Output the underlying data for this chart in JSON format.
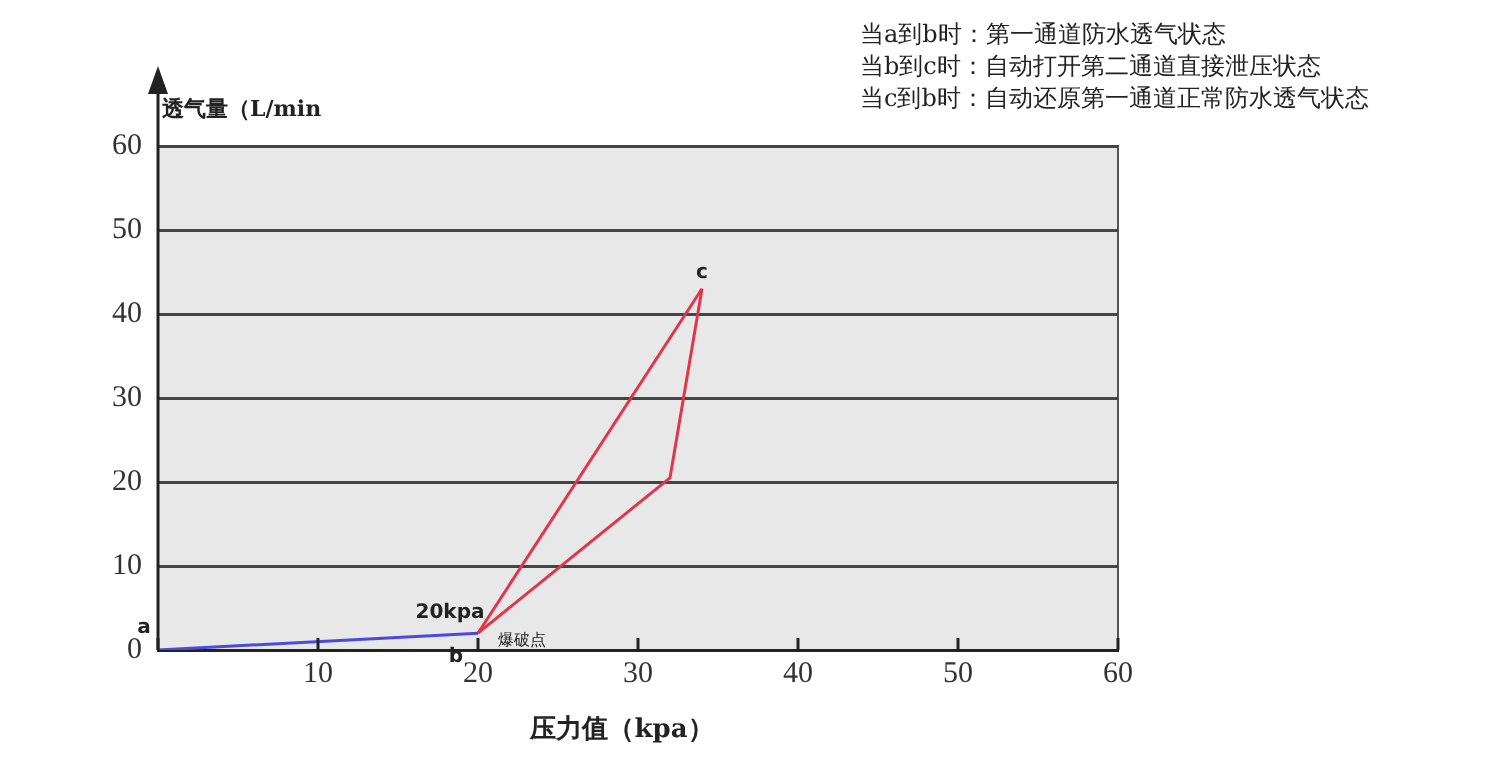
{
  "chart_data": {
    "type": "line",
    "xlabel": "压力值（kpa）",
    "ylabel": "透气量（L/min",
    "series": [
      {
        "color": "#4a4ae0",
        "x": [
          0,
          20
        ],
        "values": [
          0,
          2
        ]
      },
      {
        "color": "#e0364a",
        "x": [
          20,
          34
        ],
        "values": [
          2,
          43
        ]
      },
      {
        "color": "#e0364a",
        "x": [
          34,
          32,
          20
        ],
        "values": [
          43,
          20.5,
          2
        ]
      }
    ],
    "xlim": [
      0,
      60
    ],
    "xticks": [
      {
        "value": 0,
        "label": null
      },
      10,
      20,
      30,
      40,
      50,
      60
    ],
    "ylim": [
      0,
      60
    ],
    "yticks": [
      0,
      10,
      20,
      30,
      40,
      50,
      60
    ],
    "grid": "y",
    "legend": false,
    "marker": "none",
    "line_style": "solid",
    "annotations": [
      {
        "text": "a",
        "x": 0,
        "y": 0
      },
      {
        "text": "b",
        "x": 20,
        "y": 2
      },
      {
        "text": "c",
        "x": 34,
        "y": 43
      },
      {
        "text": "20kpa",
        "x": 20,
        "y": 2
      },
      {
        "text": "爆破点",
        "x": 20,
        "y": 2
      },
      "当a到b时：第一通道防水透气状态",
      "当b到c时：自动打开第二通道直接泄压状态",
      "当c到b时：自动还原第一通道正常防水透气状态"
    ]
  }
}
